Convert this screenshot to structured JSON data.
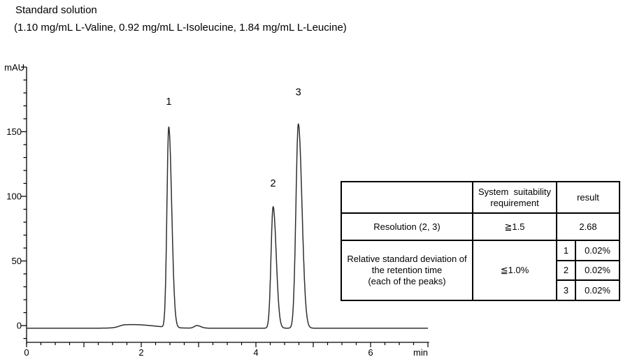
{
  "header": {
    "title": "Standard solution",
    "subtitle": "(1.10 mg/mL L-Valine, 0.92 mg/mL L-Isoleucine, 1.84 mg/mL L-Leucine)"
  },
  "chart_data": {
    "type": "line",
    "title": "Standard solution chromatogram",
    "xlabel": "min",
    "ylabel": "mAU",
    "xlim": [
      0,
      7.05
    ],
    "ylim": [
      -13,
      200
    ],
    "x_ticks_labeled": [
      0,
      2,
      4,
      6
    ],
    "y_ticks_labeled": [
      0,
      50,
      100,
      150
    ],
    "x_minor_step": 0.25,
    "y_minor_step": 10,
    "grid": "off",
    "line_color": "#2f2f2f",
    "baseline_mau": -2,
    "peaks": [
      {
        "id": "1",
        "rt_min": 2.48,
        "apex_mau": 153,
        "sigma_min": 0.032,
        "tail": 1.6,
        "label_dy": 33
      },
      {
        "id": "2",
        "rt_min": 4.3,
        "apex_mau": 92,
        "sigma_min": 0.036,
        "tail": 1.5,
        "label_dy": 29
      },
      {
        "id": "3",
        "rt_min": 4.74,
        "apex_mau": 156,
        "sigma_min": 0.042,
        "tail": 1.5,
        "label_dy": 41
      }
    ],
    "minor_features": [
      {
        "rt_min": 1.72,
        "height_mau": 2.2,
        "sigma_min": 0.1,
        "tail": 3.5
      },
      {
        "rt_min": 2.1,
        "height_mau": 1.0,
        "sigma_min": 0.3,
        "tail": 1.0
      },
      {
        "rt_min": 2.97,
        "height_mau": 2.0,
        "sigma_min": 0.045,
        "tail": 1.5
      }
    ]
  },
  "table": {
    "header": {
      "criterion": "",
      "requirement": "System  suitability\nrequirement",
      "result": "result"
    },
    "rows": {
      "resolution": {
        "label": "Resolution (2, 3)",
        "requirement": "≧1.5",
        "result": "2.68"
      },
      "rsd": {
        "label": "Relative standard deviation of\nthe retention time\n(each of the peaks)",
        "requirement": "≦1.0%",
        "results": [
          {
            "peak": "1",
            "value": "0.02%"
          },
          {
            "peak": "2",
            "value": "0.02%"
          },
          {
            "peak": "3",
            "value": "0.02%"
          }
        ]
      }
    }
  }
}
